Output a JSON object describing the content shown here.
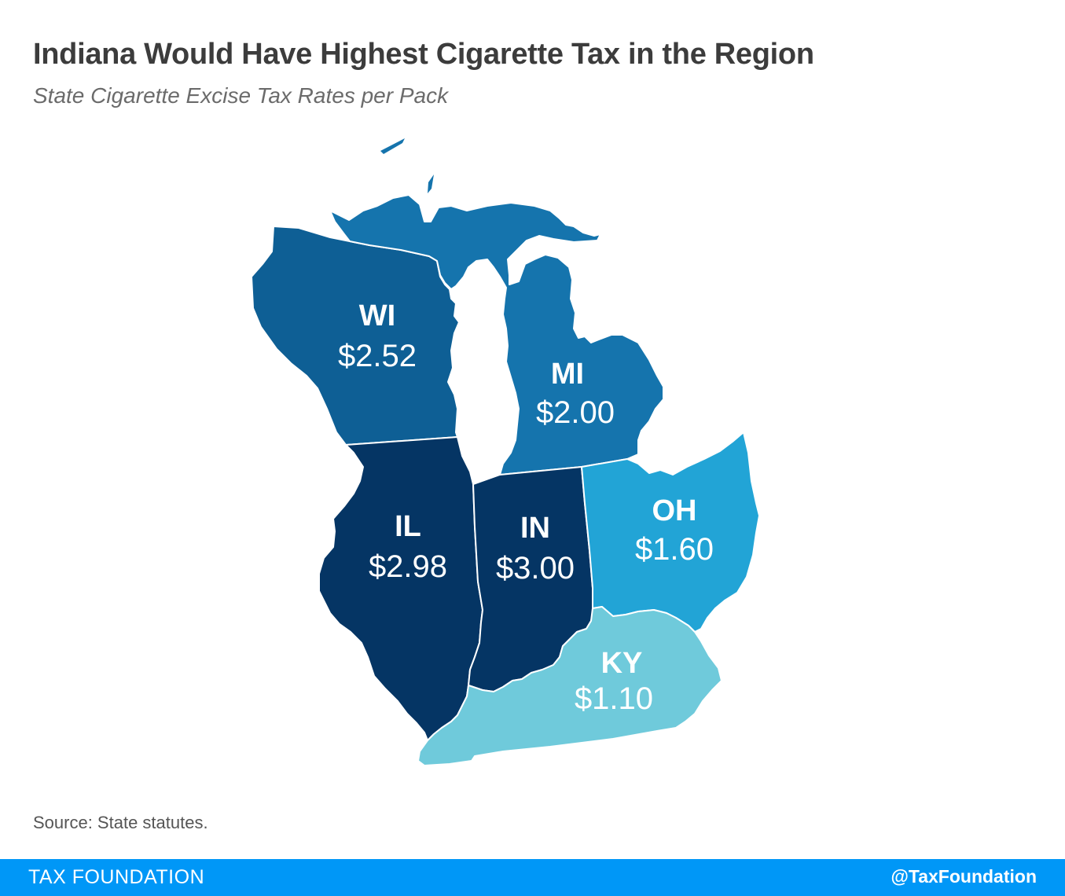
{
  "title": "Indiana Would Have Highest Cigarette Tax in the Region",
  "subtitle": "State Cigarette Excise Tax Rates per Pack",
  "states": [
    {
      "code": "WI",
      "rate": "$2.52",
      "color": "#0e5f95"
    },
    {
      "code": "MI",
      "rate": "$2.00",
      "color": "#1574ad"
    },
    {
      "code": "IL",
      "rate": "$2.98",
      "color": "#053564"
    },
    {
      "code": "IN",
      "rate": "$3.00",
      "color": "#053564"
    },
    {
      "code": "OH",
      "rate": "$1.60",
      "color": "#22a4d6"
    },
    {
      "code": "KY",
      "rate": "$1.10",
      "color": "#6fcadb"
    }
  ],
  "source": "Source: State statutes.",
  "footer": {
    "left": "TAX FOUNDATION",
    "right": "@TaxFoundation",
    "color": "#0097f7"
  }
}
